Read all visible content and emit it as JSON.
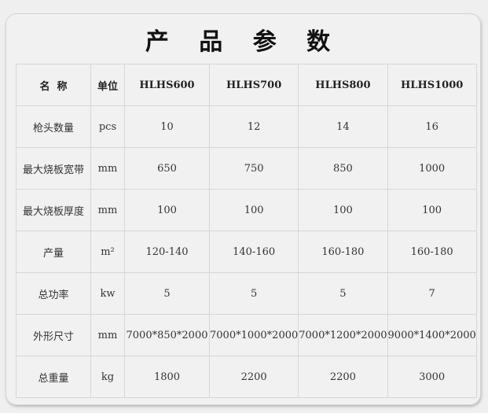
{
  "title": "产 品 参 数",
  "headers": [
    "名  称",
    "单位",
    "HLHS600",
    "HLHS700",
    "HLHS800",
    "HLHS1000"
  ],
  "rows": [
    [
      "枪头数量",
      "pcs",
      "10",
      "12",
      "14",
      "16"
    ],
    [
      "最大烧板宽带",
      "mm",
      "650",
      "750",
      "850",
      "1000"
    ],
    [
      "最大烧板厚度",
      "mm",
      "100",
      "100",
      "100",
      "100"
    ],
    [
      "产量",
      "m²",
      "120-140",
      "140-160",
      "160-180",
      "160-180"
    ],
    [
      "总功率",
      "kw",
      "5",
      "5",
      "5",
      "7"
    ],
    [
      "外形尺寸",
      "mm",
      "7000*850*2000",
      "7000*1000*2000",
      "7000*1200*2000",
      "9000*1400*2000"
    ],
    [
      "总重量",
      "kg",
      "1800",
      "2200",
      "2200",
      "3000"
    ]
  ]
}
